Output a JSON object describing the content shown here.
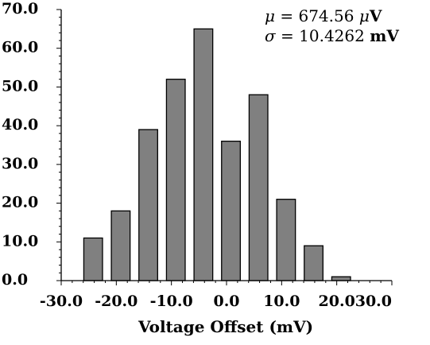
{
  "chart_data": {
    "type": "bar",
    "title": "",
    "xlabel": "Voltage Offset (mV)",
    "ylabel": "",
    "xlim": [
      -30,
      30
    ],
    "ylim": [
      0,
      70
    ],
    "x_ticks": [
      "-30.0",
      "-20.0",
      "-10.0",
      "0.0",
      "10.0",
      "20.0",
      "30.0"
    ],
    "y_ticks": [
      "0.0",
      "10.0",
      "20.0",
      "30.0",
      "40.0",
      "50.0",
      "60.0",
      "70.0"
    ],
    "bar_width": 3.4,
    "bars": [
      {
        "x": -24.2,
        "value": 11
      },
      {
        "x": -19.2,
        "value": 18
      },
      {
        "x": -14.2,
        "value": 39
      },
      {
        "x": -9.2,
        "value": 52
      },
      {
        "x": -4.2,
        "value": 65
      },
      {
        "x": 0.8,
        "value": 36
      },
      {
        "x": 5.8,
        "value": 48
      },
      {
        "x": 10.8,
        "value": 21
      },
      {
        "x": 15.8,
        "value": 9
      },
      {
        "x": 20.8,
        "value": 1
      }
    ],
    "bar_color": "#808080",
    "grid": false,
    "annotations": [
      {
        "symbol": "μ",
        "equals": " = ",
        "value": "674.56 ",
        "unit_prefix": "μ",
        "unit": "V"
      },
      {
        "symbol": "σ",
        "equals": " = ",
        "value": "10.4262 ",
        "unit_prefix": "",
        "unit": "mV"
      }
    ]
  }
}
